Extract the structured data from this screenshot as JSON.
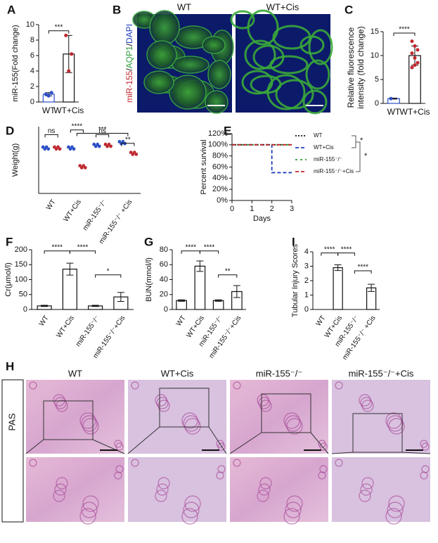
{
  "chart_data": [
    {
      "type": "bar",
      "label": "A",
      "ylabel": "miR-155(Fold change)",
      "categories": [
        "WT",
        "WT+Cis"
      ],
      "values": [
        1.0,
        6.2
      ],
      "errors": [
        0.2,
        2.4
      ],
      "colors": [
        "#2b4fc7",
        "#c0272d"
      ],
      "points": [
        [
          1.0,
          0.8,
          1.2
        ],
        [
          8.6,
          4.0,
          6.2
        ]
      ],
      "ylim": [
        0,
        10
      ],
      "yticks": [
        0,
        2,
        4,
        6,
        8,
        10
      ],
      "annotations": [
        "***"
      ]
    },
    {
      "type": "bar",
      "label": "C",
      "ylabel": [
        "Relative fluorescence",
        "intensity (fold change)"
      ],
      "categories": [
        "WT",
        "WT+Cis"
      ],
      "values": [
        1.0,
        10.0
      ],
      "errors": [
        0.1,
        2.0
      ],
      "colors": [
        "#2b4fc7",
        "#c0272d"
      ],
      "points": [
        [
          1.0
        ],
        [
          13.0,
          12.0,
          11.2,
          10.5,
          9.5,
          8.5,
          7.5,
          8.0
        ]
      ],
      "ylim": [
        0,
        15
      ],
      "yticks": [
        0,
        5,
        10,
        15
      ],
      "annotations": [
        "****"
      ]
    },
    {
      "type": "dot",
      "label": "D",
      "ylabel": "Weight(g)",
      "categories": [
        "WT",
        "WT+Cis",
        "miR-155⁻/⁻",
        "miR-155⁻/⁻ +Cis"
      ],
      "series": [
        {
          "color": "#2b4fc7",
          "values": [
            22,
            22,
            23,
            24
          ]
        },
        {
          "color": "#c0272d",
          "values": [
            22,
            15,
            23,
            20
          ]
        }
      ],
      "ylim": [
        5,
        30
      ],
      "annotations": [
        "ns",
        "****",
        "ns",
        "***",
        "**"
      ]
    },
    {
      "type": "line",
      "label": "E",
      "ylabel": "Percent survival",
      "xlabel": "Days",
      "x": [
        0,
        1,
        2,
        3
      ],
      "series": [
        {
          "name": "WT",
          "color": "#111111",
          "values": [
            100,
            100,
            100,
            100
          ]
        },
        {
          "name": "WT+Cis",
          "color": "#1f3fbf",
          "values": [
            100,
            100,
            50,
            50
          ]
        },
        {
          "name": "miR-155⁻/⁻",
          "color": "#2e9a3a",
          "values": [
            100,
            100,
            100,
            100
          ]
        },
        {
          "name": "miR-155⁻/⁻+Cis",
          "color": "#c0272d",
          "values": [
            100,
            100,
            100,
            100
          ]
        }
      ],
      "xlim": [
        0,
        3
      ],
      "xticks": [
        0,
        1,
        2,
        3
      ],
      "ylim": [
        0,
        120
      ],
      "yticks": [
        {
          "value": 0,
          "label": "0%"
        },
        {
          "value": 20,
          "label": "20%"
        },
        {
          "value": 40,
          "label": "40%"
        },
        {
          "value": 60,
          "label": "60%"
        },
        {
          "value": 80,
          "label": "80%"
        },
        {
          "value": 100,
          "label": "100%"
        },
        {
          "value": 120,
          "label": "120%"
        }
      ],
      "annotations": [
        "*",
        "*"
      ]
    },
    {
      "type": "bar",
      "label": "F",
      "ylabel": "Cr(μmol/l)",
      "categories": [
        "WT",
        "WT+Cis",
        "miR-155⁻/⁻",
        "miR-155⁻/⁻+Cis"
      ],
      "values": [
        12,
        135,
        12,
        42
      ],
      "errors": [
        2,
        20,
        2,
        15
      ],
      "ylim": [
        0,
        200
      ],
      "yticks": [
        0,
        50,
        100,
        150,
        200
      ],
      "annotations": [
        "****",
        "****",
        "*"
      ]
    },
    {
      "type": "bar",
      "label": "G",
      "ylabel": "BUN(mmol/l)",
      "categories": [
        "WT",
        "WT+Cis",
        "miR-155⁻/⁻",
        "miR-155⁻/⁻+Cis"
      ],
      "values": [
        12,
        58,
        12,
        24
      ],
      "errors": [
        1,
        7,
        1,
        8
      ],
      "ylim": [
        0,
        80
      ],
      "yticks": [
        0,
        20,
        40,
        60,
        80
      ],
      "annotations": [
        "****",
        "****",
        "**"
      ]
    },
    {
      "type": "bar",
      "label": "I",
      "ylabel": "Tubular Injury Scores",
      "categories": [
        "WT",
        "WT+Cis",
        "miR-155⁻/⁻",
        "miR-155⁻/⁻ +Cis"
      ],
      "values": [
        0,
        2.9,
        0,
        1.5
      ],
      "errors": [
        0,
        0.2,
        0,
        0.25
      ],
      "ylim": [
        0,
        4
      ],
      "yticks": [
        0,
        1,
        2,
        3,
        4
      ],
      "annotations": [
        "****",
        "****",
        "****"
      ]
    }
  ],
  "panel_b": {
    "label": "B",
    "columns": [
      "WT",
      "WT+Cis"
    ],
    "stain": [
      "miR-155",
      "/",
      "AQP1",
      "/",
      "DAPI"
    ]
  },
  "panel_h": {
    "label": "H",
    "columns": [
      "WT",
      "WT+Cis",
      "miR-155⁻/⁻",
      "miR-155⁻/⁻+Cis"
    ],
    "row_label": "PAS"
  }
}
